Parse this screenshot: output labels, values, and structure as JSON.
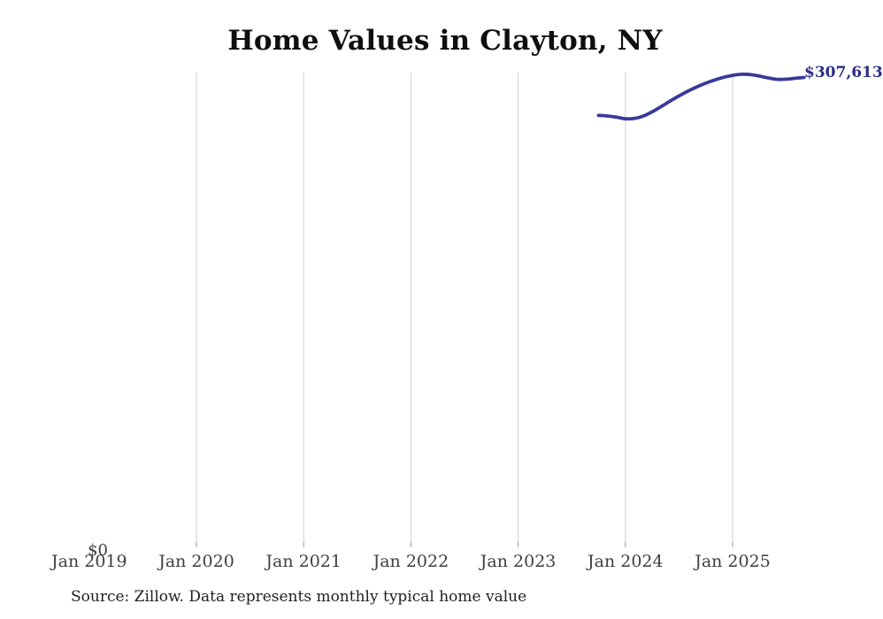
{
  "title": "Home Values in Clayton, NY",
  "source_note": "Source: Zillow. Data represents monthly typical home value",
  "end_label": "$307,613",
  "y_axis": {
    "zero_label": "$0",
    "ticks": [
      "$0"
    ]
  },
  "x_axis": {
    "ticks": [
      {
        "label": "Jan 2019",
        "gridline": false
      },
      {
        "label": "Jan 2020",
        "gridline": true
      },
      {
        "label": "Jan 2021",
        "gridline": true
      },
      {
        "label": "Jan 2022",
        "gridline": true
      },
      {
        "label": "Jan 2023",
        "gridline": true
      },
      {
        "label": "Jan 2024",
        "gridline": true
      },
      {
        "label": "Jan 2025",
        "gridline": true
      }
    ]
  },
  "colors": {
    "line": "#39399b",
    "end_label": "#2c2c87",
    "grid": "#cfcfcf",
    "tick_mark": "#9a9a9a",
    "axis_text": "#3f3f3f",
    "title_text": "#0f0f0f",
    "source_text": "#1f1f1f",
    "background": "#ffffff"
  },
  "chart_data": {
    "type": "line",
    "title": "Home Values in Clayton, NY",
    "xlabel": "",
    "ylabel": "",
    "ylim": [
      0,
      311000
    ],
    "grid": "vertical-only",
    "legend": "none",
    "x_tick_labels": [
      "Jan 2019",
      "Jan 2020",
      "Jan 2021",
      "Jan 2022",
      "Jan 2023",
      "Jan 2024",
      "Jan 2025"
    ],
    "y_tick_labels": [
      "$0"
    ],
    "last_point_label": "$307,613",
    "x": [
      "Oct 2023",
      "Nov 2023",
      "Dec 2023",
      "Jan 2024",
      "Feb 2024",
      "Mar 2024",
      "Apr 2024",
      "May 2024",
      "Jun 2024",
      "Jul 2024",
      "Aug 2024",
      "Sep 2024",
      "Oct 2024",
      "Nov 2024",
      "Dec 2024",
      "Jan 2025",
      "Feb 2025",
      "Mar 2025",
      "Apr 2025",
      "May 2025",
      "Jun 2025",
      "Jul 2025",
      "Aug 2025",
      "Sep 2025"
    ],
    "values": [
      282900,
      282500,
      281700,
      280700,
      280900,
      282400,
      285200,
      288600,
      292200,
      295600,
      298700,
      301500,
      303900,
      306000,
      307700,
      309000,
      309700,
      309500,
      308500,
      307300,
      306400,
      306500,
      307100,
      307613
    ]
  }
}
